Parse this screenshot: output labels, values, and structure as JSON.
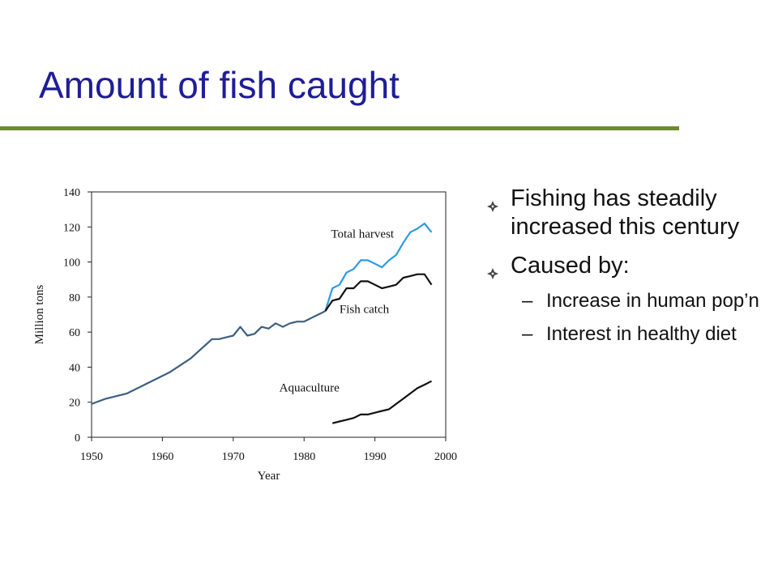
{
  "slide": {
    "title": "Amount of fish caught",
    "colors": {
      "title": "#1f1d99",
      "rule": "#6c8c2f"
    }
  },
  "bullets": [
    {
      "text": "Fishing has steadily increased this century",
      "icon": "diamond-bullet-icon",
      "subitems": []
    },
    {
      "text": "Caused by:",
      "icon": "diamond-bullet-icon",
      "subitems": [
        {
          "marker": "–",
          "text": "Increase in human pop’n"
        },
        {
          "marker": "–",
          "text": "Interest in healthy diet"
        }
      ]
    }
  ],
  "chart_data": {
    "type": "line",
    "title": "",
    "xlabel": "Year",
    "ylabel": "Million tons",
    "xlim": [
      1950,
      2000
    ],
    "ylim": [
      0,
      140
    ],
    "xticks": [
      1950,
      1960,
      1970,
      1980,
      1990,
      2000
    ],
    "yticks": [
      0,
      20,
      40,
      60,
      80,
      100,
      120,
      140
    ],
    "grid": false,
    "legend": "inline labels",
    "series": [
      {
        "name": "Total harvest",
        "color": "#2b9be0",
        "x": [
          1983,
          1984,
          1985,
          1986,
          1987,
          1988,
          1989,
          1990,
          1991,
          1992,
          1993,
          1994,
          1995,
          1996,
          1997,
          1998
        ],
        "y": [
          72,
          85,
          87,
          94,
          96,
          101,
          101,
          99,
          97,
          101,
          104,
          111,
          117,
          119,
          122,
          117
        ]
      },
      {
        "name": "Fish catch",
        "color": "#111111",
        "x": [
          1983,
          1984,
          1985,
          1986,
          1987,
          1988,
          1989,
          1990,
          1991,
          1992,
          1993,
          1994,
          1995,
          1996,
          1997,
          1998
        ],
        "y": [
          72,
          78,
          79,
          85,
          85,
          89,
          89,
          87,
          85,
          86,
          87,
          91,
          92,
          93,
          93,
          87
        ]
      },
      {
        "name": "",
        "color": "#3c5f80",
        "x": [
          1950,
          1952,
          1955,
          1958,
          1961,
          1964,
          1967,
          1968,
          1969,
          1970,
          1971,
          1972,
          1973,
          1974,
          1975,
          1976,
          1977,
          1978,
          1979,
          1980,
          1981,
          1982,
          1983
        ],
        "y": [
          19,
          22,
          25,
          31,
          37,
          45,
          56,
          56,
          57,
          58,
          63,
          58,
          59,
          63,
          62,
          65,
          63,
          65,
          66,
          66,
          68,
          70,
          72
        ]
      },
      {
        "name": "Aquaculture",
        "color": "#111111",
        "x": [
          1984,
          1985,
          1986,
          1987,
          1988,
          1989,
          1990,
          1991,
          1992,
          1993,
          1994,
          1995,
          1996,
          1997,
          1998
        ],
        "y": [
          8,
          9,
          10,
          11,
          13,
          13,
          14,
          15,
          16,
          19,
          22,
          25,
          28,
          30,
          32
        ]
      }
    ],
    "labels": [
      {
        "text": "Total harvest",
        "x": 1983.8,
        "y": 114
      },
      {
        "text": "Fish catch",
        "x": 1985,
        "y": 71
      },
      {
        "text": "Aquaculture",
        "x": 1976.5,
        "y": 26
      }
    ]
  }
}
